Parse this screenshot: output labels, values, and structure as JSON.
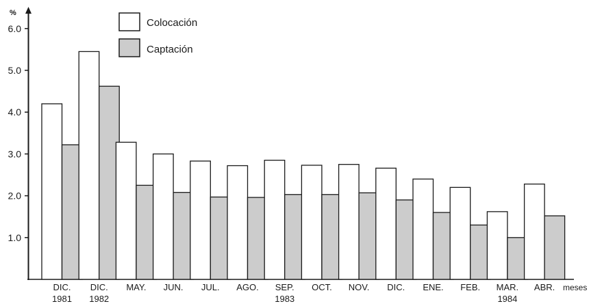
{
  "chart_data": {
    "type": "bar",
    "ylabel": "%",
    "xlabel": "meses",
    "ylim": [
      0,
      6.3
    ],
    "yticks": [
      "1.0",
      "2.0",
      "3.0",
      "4.0",
      "5.0",
      "6.0"
    ],
    "categories": [
      {
        "month": "DIC.",
        "year": "1981"
      },
      {
        "month": "DIC.",
        "year": "1982"
      },
      {
        "month": "MAY.",
        "year": ""
      },
      {
        "month": "JUN.",
        "year": ""
      },
      {
        "month": "JUL.",
        "year": ""
      },
      {
        "month": "AGO.",
        "year": ""
      },
      {
        "month": "SEP.",
        "year": "1983"
      },
      {
        "month": "OCT.",
        "year": ""
      },
      {
        "month": "NOV.",
        "year": ""
      },
      {
        "month": "DIC.",
        "year": ""
      },
      {
        "month": "ENE.",
        "year": ""
      },
      {
        "month": "FEB.",
        "year": ""
      },
      {
        "month": "MAR.",
        "year": "1984"
      },
      {
        "month": "ABR.",
        "year": ""
      }
    ],
    "series": [
      {
        "name": "Colocación",
        "color": "#ffffff",
        "values": [
          4.2,
          5.45,
          3.28,
          3.0,
          2.83,
          2.72,
          2.85,
          2.73,
          2.75,
          2.66,
          2.4,
          2.2,
          1.62,
          2.28
        ]
      },
      {
        "name": "Captación",
        "color": "#cccccc",
        "values": [
          3.22,
          4.62,
          2.25,
          2.08,
          1.97,
          1.96,
          2.03,
          2.03,
          2.07,
          1.9,
          1.6,
          1.3,
          1.0,
          1.52
        ]
      }
    ],
    "legend_position": "top-left",
    "grid": false
  }
}
